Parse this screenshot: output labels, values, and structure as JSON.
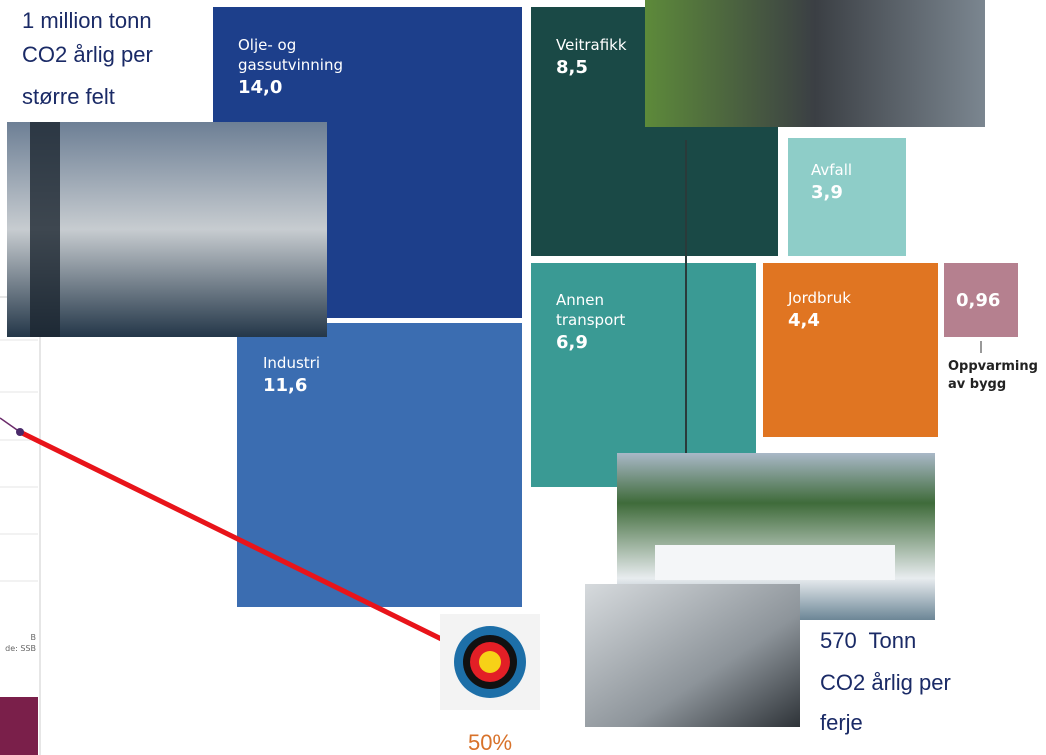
{
  "annotations": {
    "top_left": [
      "1 million tonn",
      "CO2 årlig per",
      "større felt"
    ],
    "bottom_right": [
      "570  Tonn",
      "CO2 årlig per",
      "ferje"
    ],
    "target": "50%"
  },
  "blocks": [
    {
      "label": [
        "Olje- og",
        "gassutvinning"
      ],
      "value": "14,0"
    },
    {
      "label": [
        "Industri"
      ],
      "value": "11,6"
    },
    {
      "label": [
        "Veitrafikk"
      ],
      "value": "8,5"
    },
    {
      "label": [
        "Avfall"
      ],
      "value": "3,9"
    },
    {
      "label": [
        "Annen",
        "transport"
      ],
      "value": "6,9"
    },
    {
      "label": [
        "Jordbruk"
      ],
      "value": "4,4"
    },
    {
      "label": [],
      "value": "0,96"
    }
  ],
  "small_block_caption": [
    "Oppvarming",
    "av bygg"
  ],
  "side_panel": {
    "source_fragments": [
      "B",
      "de: SSB"
    ]
  }
}
